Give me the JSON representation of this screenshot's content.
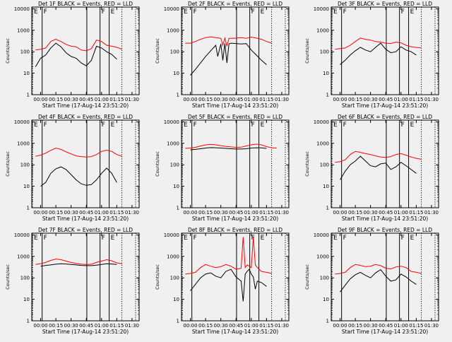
{
  "colors": {
    "background": "#f0f0f0",
    "black_series": "#000000",
    "red_series": "#ff0000",
    "axis": "#000000"
  },
  "shared": {
    "ylabel": "Counts/sec",
    "xlabel": "Start Time (17-Aug-14 23:51:20)",
    "x_ticks": [
      "00:00",
      "00:15",
      "00:30",
      "00:45",
      "01:00",
      "01:15",
      "01:30"
    ],
    "x_tick_values": [
      0,
      15,
      30,
      45,
      60,
      75,
      90
    ],
    "y_ticks": [
      "1",
      "10",
      "100",
      "1000",
      "10000"
    ],
    "y_tick_values": [
      1,
      10,
      100,
      1000,
      10000
    ],
    "xlim": [
      -8.7,
      97
    ],
    "ylim": [
      1,
      12000
    ],
    "yscale": "log",
    "solid_vlines": [
      1.5,
      45.5,
      58.5,
      67.5
    ],
    "dotted_vlines": [
      -8.0,
      80.0,
      93.5
    ],
    "region_markers": [
      {
        "label": "E",
        "x": -8.0
      },
      {
        "label": "F",
        "x": 1.5
      },
      {
        "label": "F",
        "x": 58.5
      },
      {
        "label": "E",
        "x": 67.5
      }
    ]
  },
  "chart_data": [
    {
      "type": "line",
      "title": "Det 1F BLACK = Events, RED = LLD",
      "series": [
        {
          "color": "red",
          "x": [
            -5,
            0,
            5,
            10,
            15,
            20,
            25,
            30,
            35,
            40,
            45,
            50,
            55,
            60,
            65,
            70,
            75,
            80
          ],
          "y": [
            120,
            130,
            150,
            300,
            380,
            300,
            220,
            180,
            170,
            120,
            110,
            140,
            350,
            300,
            200,
            180,
            160,
            130
          ]
        },
        {
          "color": "black",
          "x": [
            -5,
            0,
            5,
            10,
            15,
            20,
            25,
            30,
            35,
            40,
            45,
            50,
            55,
            60,
            65,
            70,
            75
          ],
          "y": [
            20,
            50,
            70,
            150,
            250,
            170,
            90,
            60,
            50,
            30,
            22,
            40,
            180,
            150,
            100,
            75,
            45
          ]
        }
      ]
    },
    {
      "type": "line",
      "title": "Det 2F BLACK = Events, RED = LLD",
      "series": [
        {
          "color": "red",
          "x": [
            -5,
            0,
            5,
            10,
            15,
            20,
            25,
            30,
            32,
            34,
            36,
            38,
            40,
            45,
            50,
            55,
            60,
            65,
            70,
            75,
            80
          ],
          "y": [
            250,
            250,
            300,
            380,
            450,
            500,
            450,
            420,
            200,
            430,
            180,
            420,
            420,
            430,
            450,
            420,
            480,
            430,
            380,
            300,
            250
          ]
        },
        {
          "color": "black",
          "x": [
            0,
            5,
            10,
            15,
            20,
            25,
            27,
            30,
            32,
            34,
            36,
            38,
            40,
            45,
            50,
            55,
            60,
            65,
            70,
            75
          ],
          "y": [
            8,
            15,
            30,
            60,
            110,
            200,
            60,
            230,
            40,
            240,
            30,
            230,
            250,
            240,
            230,
            240,
            120,
            70,
            40,
            25
          ]
        }
      ]
    },
    {
      "type": "line",
      "title": "Det 3F BLACK = Events, RED = LLD",
      "series": [
        {
          "color": "red",
          "x": [
            -5,
            0,
            5,
            10,
            15,
            20,
            25,
            30,
            35,
            40,
            45,
            50,
            55,
            60,
            65,
            70,
            75,
            80
          ],
          "y": [
            130,
            140,
            150,
            200,
            300,
            430,
            380,
            350,
            300,
            280,
            250,
            240,
            280,
            260,
            200,
            170,
            160,
            150
          ]
        },
        {
          "color": "black",
          "x": [
            0,
            5,
            10,
            15,
            20,
            25,
            30,
            35,
            40,
            45,
            50,
            55,
            60,
            65,
            70,
            75
          ],
          "y": [
            25,
            40,
            70,
            110,
            160,
            120,
            100,
            160,
            250,
            130,
            90,
            100,
            170,
            120,
            100,
            70
          ]
        }
      ]
    },
    {
      "type": "line",
      "title": "Det 4F BLACK = Events, RED = LLD",
      "series": [
        {
          "color": "red",
          "x": [
            -5,
            0,
            5,
            10,
            15,
            20,
            25,
            30,
            35,
            40,
            45,
            50,
            55,
            60,
            65,
            70,
            75,
            80
          ],
          "y": [
            250,
            280,
            350,
            470,
            600,
            520,
            400,
            320,
            260,
            240,
            230,
            240,
            300,
            420,
            480,
            420,
            300,
            250
          ]
        },
        {
          "color": "black",
          "x": [
            0,
            5,
            10,
            15,
            20,
            25,
            30,
            35,
            40,
            45,
            50,
            55,
            60,
            65,
            70,
            75
          ],
          "y": [
            10,
            15,
            40,
            65,
            80,
            60,
            35,
            20,
            13,
            11,
            12,
            20,
            40,
            70,
            40,
            15
          ]
        }
      ]
    },
    {
      "type": "line",
      "title": "Det 5F BLACK = Events, RED = LLD",
      "series": [
        {
          "color": "red",
          "x": [
            -5,
            0,
            5,
            10,
            15,
            20,
            25,
            30,
            35,
            40,
            45,
            50,
            55,
            60,
            65,
            70,
            75,
            80,
            85
          ],
          "y": [
            580,
            600,
            650,
            750,
            850,
            900,
            850,
            780,
            720,
            680,
            650,
            660,
            750,
            850,
            920,
            850,
            700,
            620,
            600
          ]
        },
        {
          "color": "black",
          "x": [
            0,
            5,
            10,
            15,
            20,
            25,
            30,
            35,
            40,
            45,
            50,
            55,
            60,
            65,
            70,
            75
          ],
          "y": [
            500,
            520,
            560,
            600,
            630,
            620,
            600,
            580,
            560,
            540,
            540,
            560,
            600,
            620,
            610,
            580
          ]
        }
      ]
    },
    {
      "type": "line",
      "title": "Det 6F BLACK = Events, RED = LLD",
      "series": [
        {
          "color": "red",
          "x": [
            -5,
            0,
            5,
            10,
            15,
            20,
            25,
            30,
            35,
            40,
            45,
            50,
            55,
            60,
            65,
            70,
            75,
            80
          ],
          "y": [
            130,
            140,
            170,
            300,
            420,
            380,
            330,
            300,
            260,
            230,
            220,
            240,
            300,
            330,
            280,
            230,
            200,
            180
          ]
        },
        {
          "color": "black",
          "x": [
            0,
            5,
            10,
            15,
            20,
            25,
            30,
            35,
            40,
            45,
            50,
            55,
            60,
            65,
            70,
            75
          ],
          "y": [
            20,
            50,
            100,
            150,
            250,
            150,
            90,
            80,
            110,
            120,
            60,
            80,
            130,
            90,
            60,
            40
          ]
        }
      ]
    },
    {
      "type": "line",
      "title": "Det 7F BLACK = Events, RED = LLD",
      "series": [
        {
          "color": "red",
          "x": [
            -5,
            0,
            5,
            10,
            15,
            20,
            25,
            30,
            35,
            40,
            45,
            50,
            55,
            60,
            65,
            70,
            75,
            80
          ],
          "y": [
            420,
            460,
            520,
            650,
            750,
            700,
            600,
            520,
            470,
            430,
            420,
            430,
            520,
            600,
            700,
            620,
            500,
            450
          ]
        },
        {
          "color": "black",
          "x": [
            0,
            5,
            10,
            15,
            20,
            25,
            30,
            35,
            40,
            45,
            50,
            55,
            60,
            65,
            70,
            75
          ],
          "y": [
            350,
            380,
            400,
            430,
            450,
            440,
            420,
            400,
            380,
            370,
            370,
            390,
            420,
            450,
            440,
            420
          ]
        }
      ]
    },
    {
      "type": "line",
      "title": "Det 8F BLACK = Events, RED = LLD",
      "series": [
        {
          "color": "red",
          "x": [
            -5,
            0,
            5,
            10,
            15,
            20,
            25,
            30,
            35,
            40,
            45,
            50,
            52,
            54,
            56,
            58,
            60,
            62,
            64,
            66,
            70,
            75,
            80
          ],
          "y": [
            150,
            160,
            180,
            300,
            420,
            350,
            300,
            330,
            420,
            350,
            250,
            280,
            8000,
            300,
            400,
            350,
            300,
            8000,
            400,
            300,
            200,
            180,
            160
          ]
        },
        {
          "color": "black",
          "x": [
            0,
            5,
            10,
            15,
            20,
            25,
            30,
            35,
            40,
            45,
            50,
            52,
            54,
            56,
            58,
            60,
            62,
            64,
            66,
            70,
            75
          ],
          "y": [
            25,
            50,
            100,
            150,
            170,
            120,
            100,
            200,
            250,
            110,
            70,
            8,
            150,
            200,
            250,
            150,
            110,
            30,
            70,
            60,
            40
          ]
        }
      ]
    },
    {
      "type": "line",
      "title": "Det 9F BLACK = Events, RED = LLD",
      "series": [
        {
          "color": "red",
          "x": [
            -5,
            0,
            5,
            10,
            15,
            20,
            25,
            30,
            35,
            40,
            45,
            50,
            55,
            60,
            65,
            70,
            75,
            80
          ],
          "y": [
            150,
            160,
            180,
            300,
            420,
            380,
            330,
            350,
            420,
            370,
            280,
            260,
            320,
            350,
            300,
            200,
            180,
            160
          ]
        },
        {
          "color": "black",
          "x": [
            0,
            5,
            10,
            15,
            20,
            25,
            30,
            35,
            40,
            45,
            50,
            55,
            60,
            65,
            70,
            75
          ],
          "y": [
            22,
            45,
            90,
            140,
            180,
            130,
            100,
            170,
            240,
            120,
            70,
            80,
            150,
            110,
            70,
            50
          ]
        }
      ]
    }
  ]
}
